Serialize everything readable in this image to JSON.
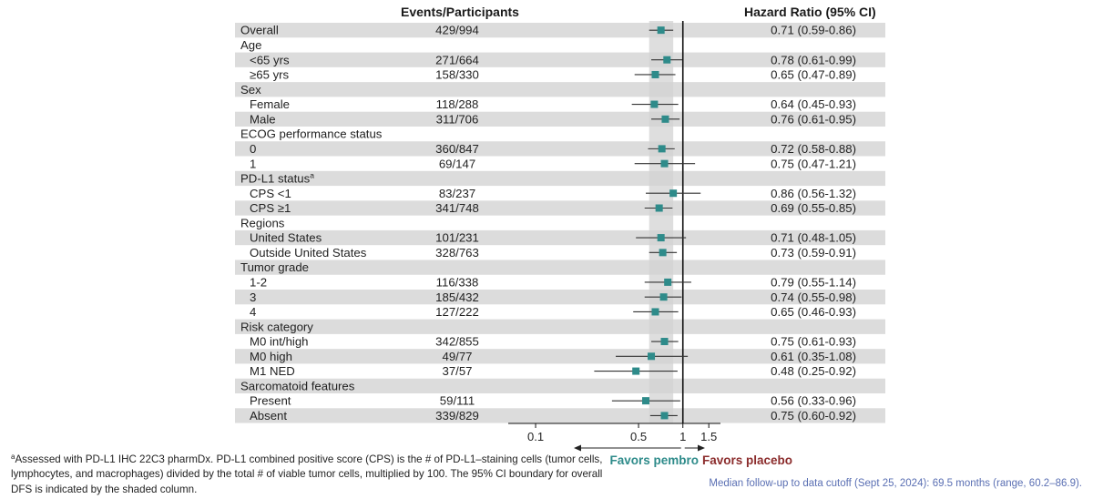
{
  "headers": {
    "events": "Events/Participants",
    "hr": "Hazard Ratio (95% CI)"
  },
  "chart_data": {
    "type": "forest",
    "x_scale": "log",
    "xlim": [
      0.07,
      1.8
    ],
    "ticks": [
      0.1,
      0.5,
      1,
      1.5
    ],
    "tick_labels": [
      "0.1",
      "0.5",
      "1",
      "1.5"
    ],
    "reference_line": 1,
    "shaded_band": [
      0.59,
      0.86
    ],
    "favors_left": "Favors pembro",
    "favors_right": "Favors placebo",
    "colors": {
      "marker": "#2e8b8a",
      "favors_left": "#2e8b8a",
      "favors_right": "#8b2c2c",
      "band": "#d3d3d3",
      "row_stripe": "#dcdcdc"
    },
    "rows": [
      {
        "label": "Overall",
        "indent": 0,
        "events": "429/994",
        "hr": 0.71,
        "lo": 0.59,
        "hi": 0.86,
        "hr_text": "0.71 (0.59-0.86)"
      },
      {
        "label": "Age",
        "indent": 0
      },
      {
        "label": "<65 yrs",
        "indent": 1,
        "events": "271/664",
        "hr": 0.78,
        "lo": 0.61,
        "hi": 0.99,
        "hr_text": "0.78 (0.61-0.99)"
      },
      {
        "label": "≥65 yrs",
        "indent": 1,
        "events": "158/330",
        "hr": 0.65,
        "lo": 0.47,
        "hi": 0.89,
        "hr_text": "0.65 (0.47-0.89)"
      },
      {
        "label": "Sex",
        "indent": 0
      },
      {
        "label": "Female",
        "indent": 1,
        "events": "118/288",
        "hr": 0.64,
        "lo": 0.45,
        "hi": 0.93,
        "hr_text": "0.64 (0.45-0.93)"
      },
      {
        "label": "Male",
        "indent": 1,
        "events": "311/706",
        "hr": 0.76,
        "lo": 0.61,
        "hi": 0.95,
        "hr_text": "0.76 (0.61-0.95)"
      },
      {
        "label": "ECOG performance status",
        "indent": 0
      },
      {
        "label": "0",
        "indent": 1,
        "events": "360/847",
        "hr": 0.72,
        "lo": 0.58,
        "hi": 0.88,
        "hr_text": "0.72 (0.58-0.88)"
      },
      {
        "label": "1",
        "indent": 1,
        "events": "69/147",
        "hr": 0.75,
        "lo": 0.47,
        "hi": 1.21,
        "hr_text": "0.75 (0.47-1.21)"
      },
      {
        "label": "PD-L1 status",
        "sup": "a",
        "indent": 0
      },
      {
        "label": "CPS <1",
        "indent": 1,
        "events": "83/237",
        "hr": 0.86,
        "lo": 0.56,
        "hi": 1.32,
        "hr_text": "0.86 (0.56-1.32)"
      },
      {
        "label": "CPS ≥1",
        "indent": 1,
        "events": "341/748",
        "hr": 0.69,
        "lo": 0.55,
        "hi": 0.85,
        "hr_text": "0.69 (0.55-0.85)"
      },
      {
        "label": "Regions",
        "indent": 0
      },
      {
        "label": "United States",
        "indent": 1,
        "events": "101/231",
        "hr": 0.71,
        "lo": 0.48,
        "hi": 1.05,
        "hr_text": "0.71 (0.48-1.05)"
      },
      {
        "label": "Outside United States",
        "indent": 1,
        "events": "328/763",
        "hr": 0.73,
        "lo": 0.59,
        "hi": 0.91,
        "hr_text": "0.73 (0.59-0.91)"
      },
      {
        "label": "Tumor grade",
        "indent": 0
      },
      {
        "label": "1-2",
        "indent": 1,
        "events": "116/338",
        "hr": 0.79,
        "lo": 0.55,
        "hi": 1.14,
        "hr_text": "0.79 (0.55-1.14)"
      },
      {
        "label": "3",
        "indent": 1,
        "events": "185/432",
        "hr": 0.74,
        "lo": 0.55,
        "hi": 0.98,
        "hr_text": "0.74 (0.55-0.98)"
      },
      {
        "label": "4",
        "indent": 1,
        "events": "127/222",
        "hr": 0.65,
        "lo": 0.46,
        "hi": 0.93,
        "hr_text": "0.65 (0.46-0.93)"
      },
      {
        "label": "Risk category",
        "indent": 0
      },
      {
        "label": "M0 int/high",
        "indent": 1,
        "events": "342/855",
        "hr": 0.75,
        "lo": 0.61,
        "hi": 0.93,
        "hr_text": "0.75 (0.61-0.93)"
      },
      {
        "label": "M0 high",
        "indent": 1,
        "events": "49/77",
        "hr": 0.61,
        "lo": 0.35,
        "hi": 1.08,
        "hr_text": "0.61 (0.35-1.08)"
      },
      {
        "label": "M1 NED",
        "indent": 1,
        "events": "37/57",
        "hr": 0.48,
        "lo": 0.25,
        "hi": 0.92,
        "hr_text": "0.48 (0.25-0.92)"
      },
      {
        "label": "Sarcomatoid features",
        "indent": 0
      },
      {
        "label": "Present",
        "indent": 1,
        "events": "59/111",
        "hr": 0.56,
        "lo": 0.33,
        "hi": 0.96,
        "hr_text": "0.56 (0.33-0.96)"
      },
      {
        "label": "Absent",
        "indent": 1,
        "events": "339/829",
        "hr": 0.75,
        "lo": 0.6,
        "hi": 0.92,
        "hr_text": "0.75 (0.60-0.92)"
      }
    ]
  },
  "footnote": {
    "marker": "a",
    "text": "Assessed with PD-L1 IHC 22C3 pharmDx. PD-L1 combined positive score (CPS) is the # of PD-L1–staining cells (tumor cells, lymphocytes, and macrophages) divided by the total # of viable tumor cells, multiplied by 100. The 95% CI boundary for overall DFS is indicated by the shaded column."
  },
  "followup": "Median follow-up to data cutoff (Sept 25, 2024): 69.5 months (range, 60.2–86.9)."
}
